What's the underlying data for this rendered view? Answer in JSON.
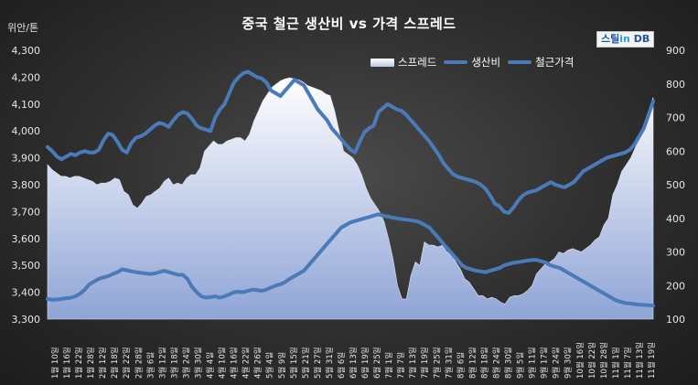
{
  "title": "중국 철근 생산비 vs 가격 스프레드",
  "unit_label": "위안/톤",
  "logo": {
    "part1": "스틸",
    "part2": "in",
    "part3": " DB"
  },
  "legend": [
    "스프레드",
    "생산비",
    "철근가격"
  ],
  "colors": {
    "background": "#2e2e2e",
    "line": "#4a7ab8",
    "area_top": "#ffffff",
    "area_bottom": "#8fa4d6",
    "text": "#ffffff"
  },
  "chart_data": {
    "type": "line",
    "title": "중국 철근 생산비 vs 가격 스프레드",
    "left_axis": {
      "ylabel": "위안/톤",
      "ylim": [
        3300,
        4300
      ],
      "ticks": [
        "3,300",
        "3,400",
        "3,500",
        "3,600",
        "3,700",
        "3,800",
        "3,900",
        "4,000",
        "4,100",
        "4,200",
        "4,300"
      ]
    },
    "right_axis": {
      "ylim": [
        100,
        900
      ],
      "ticks": [
        "100",
        "200",
        "300",
        "400",
        "500",
        "600",
        "700",
        "800",
        "900"
      ]
    },
    "x_labels": [
      "1월 10일",
      "1월 16일",
      "1월 22일",
      "1월 28일",
      "2월 12일",
      "2월 18일",
      "2월 22일",
      "2월 28일",
      "3월 6일",
      "3월 12일",
      "3월 18일",
      "3월 24일",
      "3월 30일",
      "4월 4일",
      "4월 10일",
      "4월 16일",
      "4월 22일",
      "4월 26일",
      "5월 4일",
      "5월 9일",
      "5월 15일",
      "5월 21일",
      "5월 27일",
      "5월 31일",
      "6월 6일",
      "6월 13일",
      "6월 19일",
      "6월 25일",
      "7월 1일",
      "7월 7일",
      "7월 13일",
      "7월 19일",
      "7월 25일",
      "7월 31일",
      "8월 6일",
      "8월 12일",
      "8월 18일",
      "8월 24일",
      "8월 30일",
      "9월 5일",
      "9월 11일",
      "9월 17일",
      "9월 24일",
      "9월 30일",
      "10월 16일",
      "10월 22일",
      "10월 28일",
      "11월 1일",
      "11월 7일",
      "11월 13일",
      "11월 19일"
    ],
    "grid": false,
    "legend_position": "top-right",
    "series": [
      {
        "name": "스프레드",
        "type": "area",
        "axis": "right",
        "values": [
          560,
          545,
          535,
          525,
          525,
          520,
          525,
          525,
          520,
          515,
          510,
          500,
          505,
          505,
          510,
          520,
          515,
          480,
          470,
          440,
          430,
          445,
          465,
          470,
          480,
          490,
          510,
          520,
          500,
          505,
          500,
          520,
          530,
          530,
          550,
          600,
          615,
          630,
          620,
          620,
          630,
          635,
          640,
          640,
          630,
          650,
          690,
          720,
          750,
          770,
          790,
          800,
          810,
          815,
          818,
          815,
          812,
          805,
          795,
          790,
          785,
          780,
          770,
          765,
          720,
          660,
          600,
          590,
          580,
          560,
          530,
          490,
          460,
          440,
          420,
          390,
          340,
          280,
          200,
          160,
          160,
          230,
          270,
          260,
          330,
          320,
          320,
          315,
          320,
          300,
          300,
          270,
          250,
          220,
          210,
          190,
          170,
          170,
          160,
          165,
          160,
          150,
          145,
          165,
          170,
          170,
          175,
          185,
          200,
          235,
          250,
          265,
          270,
          280,
          300,
          295,
          305,
          310,
          305,
          300,
          310,
          320,
          335,
          345,
          380,
          400,
          470,
          500,
          540,
          560,
          580,
          610,
          640,
          680,
          720,
          760
        ]
      },
      {
        "name": "생산비",
        "type": "line",
        "axis": "left",
        "values": [
          3375,
          3372,
          3373,
          3375,
          3378,
          3380,
          3385,
          3395,
          3410,
          3430,
          3440,
          3450,
          3455,
          3460,
          3468,
          3475,
          3485,
          3482,
          3478,
          3475,
          3472,
          3470,
          3468,
          3470,
          3475,
          3480,
          3475,
          3470,
          3465,
          3465,
          3450,
          3420,
          3400,
          3385,
          3380,
          3382,
          3385,
          3380,
          3385,
          3392,
          3400,
          3402,
          3400,
          3405,
          3410,
          3408,
          3405,
          3410,
          3418,
          3425,
          3430,
          3438,
          3450,
          3460,
          3470,
          3480,
          3500,
          3520,
          3540,
          3560,
          3580,
          3600,
          3620,
          3640,
          3650,
          3660,
          3665,
          3670,
          3675,
          3680,
          3685,
          3690,
          3685,
          3682,
          3678,
          3675,
          3672,
          3670,
          3668,
          3665,
          3660,
          3650,
          3640,
          3620,
          3600,
          3580,
          3560,
          3540,
          3520,
          3500,
          3490,
          3485,
          3480,
          3478,
          3475,
          3480,
          3485,
          3490,
          3500,
          3505,
          3510,
          3512,
          3515,
          3518,
          3520,
          3520,
          3515,
          3510,
          3500,
          3495,
          3490,
          3480,
          3470,
          3460,
          3450,
          3440,
          3430,
          3420,
          3410,
          3400,
          3390,
          3380,
          3370,
          3365,
          3360,
          3358,
          3356,
          3354,
          3353,
          3352,
          3350
        ]
      },
      {
        "name": "철근가격",
        "type": "line",
        "axis": "left",
        "values": [
          3940,
          3925,
          3905,
          3895,
          3905,
          3915,
          3910,
          3920,
          3925,
          3920,
          3920,
          3930,
          3965,
          3990,
          3985,
          3960,
          3930,
          3920,
          3955,
          3975,
          3980,
          3990,
          4005,
          4020,
          4030,
          4025,
          4015,
          4040,
          4060,
          4070,
          4065,
          4045,
          4020,
          4010,
          4005,
          4000,
          4050,
          4080,
          4100,
          4140,
          4180,
          4200,
          4215,
          4220,
          4210,
          4200,
          4195,
          4180,
          4150,
          4140,
          4130,
          4150,
          4170,
          4190,
          4180,
          4170,
          4140,
          4110,
          4080,
          4060,
          4040,
          4010,
          3990,
          3970,
          3950,
          3930,
          3920,
          3960,
          3995,
          4010,
          4020,
          4070,
          4085,
          4100,
          4090,
          4080,
          4075,
          4060,
          4040,
          4020,
          4000,
          3980,
          3960,
          3935,
          3910,
          3880,
          3860,
          3840,
          3830,
          3825,
          3820,
          3815,
          3810,
          3800,
          3785,
          3760,
          3730,
          3720,
          3700,
          3695,
          3715,
          3740,
          3760,
          3770,
          3775,
          3780,
          3790,
          3800,
          3810,
          3800,
          3795,
          3790,
          3800,
          3810,
          3830,
          3850,
          3860,
          3870,
          3880,
          3890,
          3900,
          3905,
          3910,
          3915,
          3920,
          3930,
          3950,
          3980,
          4010,
          4060,
          4110
        ]
      }
    ]
  }
}
